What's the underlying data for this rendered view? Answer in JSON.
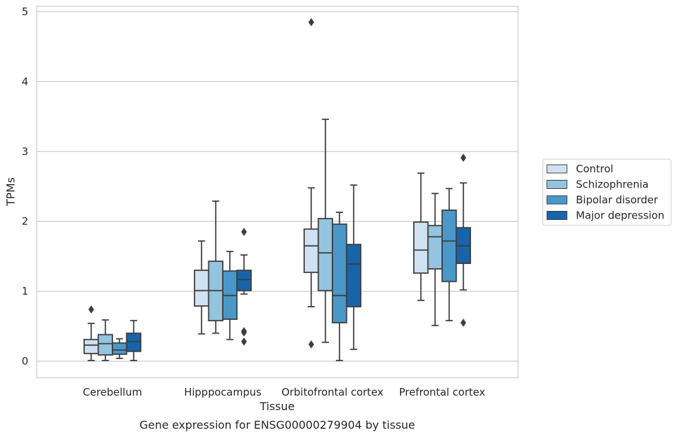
{
  "chart_data": {
    "type": "box",
    "caption": "Gene expression for ENSG00000279904 by tissue",
    "xlabel": "Tissue",
    "ylabel": "TPMs",
    "ylim": [
      -0.22,
      5.1
    ],
    "yticks": [
      0,
      1,
      2,
      3,
      4,
      5
    ],
    "ytick_labels": [
      "0",
      "1",
      "2",
      "3",
      "4",
      "5"
    ],
    "grid": "horizontal",
    "legend_position": "right",
    "categories": [
      "Cerebellum",
      "Hipppocampus",
      "Orbitofrontal cortex",
      "Prefrontal cortex"
    ],
    "series": [
      {
        "name": "Control",
        "color": "#d0e1f2",
        "boxes": [
          {
            "whislo": 0.01,
            "q1": 0.11,
            "med": 0.23,
            "q3": 0.31,
            "whishi": 0.54,
            "fliers": [
              0.74
            ]
          },
          {
            "whislo": 0.39,
            "q1": 0.79,
            "med": 1.01,
            "q3": 1.3,
            "whishi": 1.72,
            "fliers": []
          },
          {
            "whislo": 0.78,
            "q1": 1.27,
            "med": 1.65,
            "q3": 1.89,
            "whishi": 2.48,
            "fliers": [
              0.24,
              4.85
            ]
          },
          {
            "whislo": 0.87,
            "q1": 1.26,
            "med": 1.59,
            "q3": 1.99,
            "whishi": 2.69,
            "fliers": []
          }
        ]
      },
      {
        "name": "Schizophrenia",
        "color": "#94c4df",
        "boxes": [
          {
            "whislo": 0.01,
            "q1": 0.09,
            "med": 0.25,
            "q3": 0.38,
            "whishi": 0.59,
            "fliers": []
          },
          {
            "whislo": 0.4,
            "q1": 0.58,
            "med": 1.01,
            "q3": 1.43,
            "whishi": 2.29,
            "fliers": []
          },
          {
            "whislo": 0.27,
            "q1": 1.01,
            "med": 1.55,
            "q3": 2.04,
            "whishi": 3.46,
            "fliers": []
          },
          {
            "whislo": 0.51,
            "q1": 1.32,
            "med": 1.78,
            "q3": 1.94,
            "whishi": 2.4,
            "fliers": []
          }
        ]
      },
      {
        "name": "Bipolar disorder",
        "color": "#4a98c9",
        "boxes": [
          {
            "whislo": 0.04,
            "q1": 0.1,
            "med": 0.16,
            "q3": 0.26,
            "whishi": 0.32,
            "fliers": []
          },
          {
            "whislo": 0.31,
            "q1": 0.6,
            "med": 0.94,
            "q3": 1.29,
            "whishi": 1.57,
            "fliers": []
          },
          {
            "whislo": 0.01,
            "q1": 0.55,
            "med": 0.94,
            "q3": 1.96,
            "whishi": 2.13,
            "fliers": []
          },
          {
            "whislo": 0.58,
            "q1": 1.14,
            "med": 1.72,
            "q3": 2.16,
            "whishi": 2.47,
            "fliers": []
          }
        ]
      },
      {
        "name": "Major depression",
        "color": "#1764ab",
        "boxes": [
          {
            "whislo": 0.01,
            "q1": 0.14,
            "med": 0.28,
            "q3": 0.4,
            "whishi": 0.58,
            "fliers": []
          },
          {
            "whislo": 0.96,
            "q1": 1.01,
            "med": 1.17,
            "q3": 1.3,
            "whishi": 1.52,
            "fliers": [
              0.28,
              0.41,
              0.43,
              1.85
            ]
          },
          {
            "whislo": 0.17,
            "q1": 0.78,
            "med": 1.39,
            "q3": 1.67,
            "whishi": 2.52,
            "fliers": []
          },
          {
            "whislo": 1.02,
            "q1": 1.4,
            "med": 1.65,
            "q3": 1.91,
            "whishi": 2.55,
            "fliers": [
              0.55,
              2.91
            ]
          }
        ]
      }
    ]
  }
}
